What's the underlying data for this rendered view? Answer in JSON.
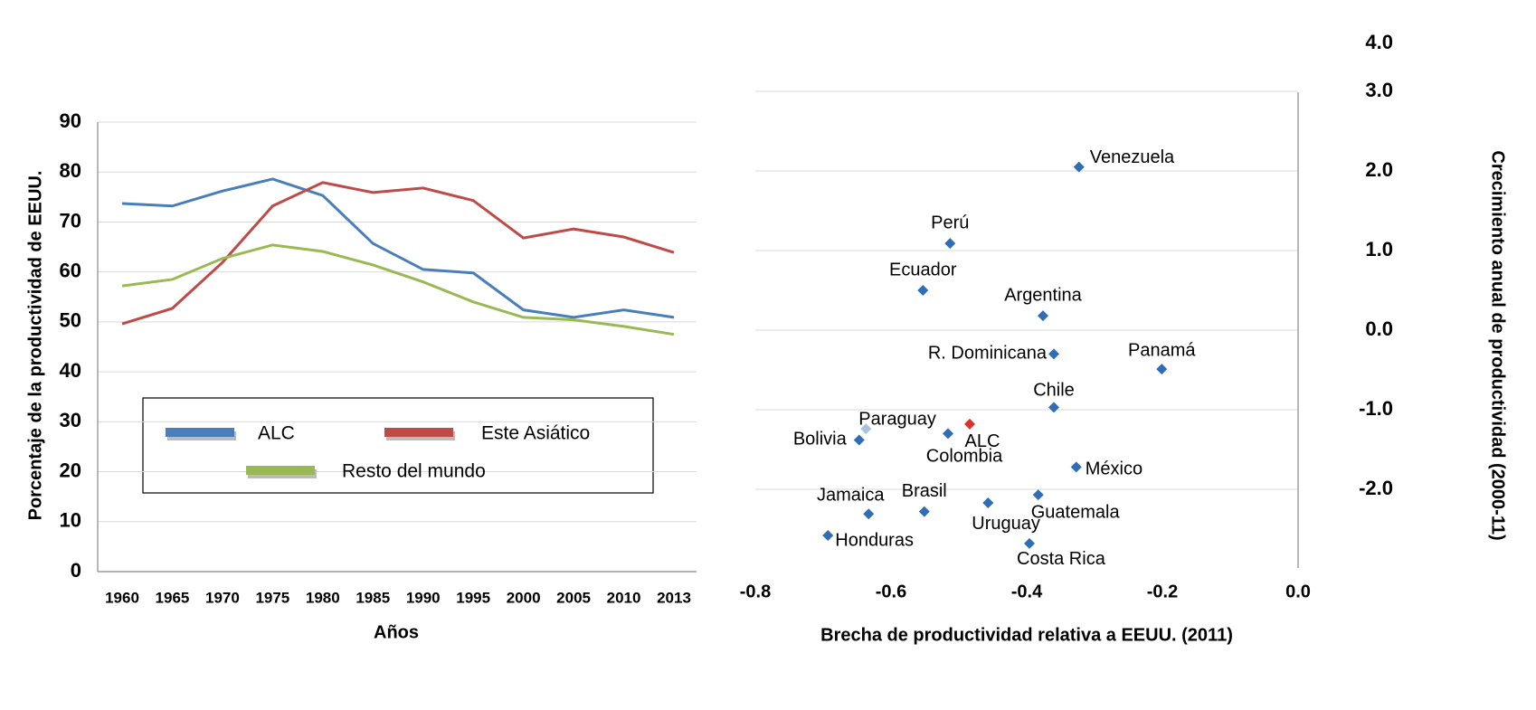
{
  "chart_data": [
    {
      "type": "line",
      "y_axis_label": "Porcentaje de la productividad de EEUU.",
      "x_axis_label": "Años",
      "categories": [
        "1960",
        "1965",
        "1970",
        "1975",
        "1980",
        "1985",
        "1990",
        "1995",
        "2000",
        "2005",
        "2010",
        "2013"
      ],
      "series": [
        {
          "name": "ALC",
          "color": "#4a7ebb",
          "values": [
            73.7,
            73.2,
            76.2,
            78.6,
            75.3,
            65.7,
            60.5,
            59.8,
            52.4,
            50.9,
            52.4,
            50.9
          ]
        },
        {
          "name": "Este Asiático",
          "color": "#be4b48",
          "values": [
            49.6,
            52.7,
            61.9,
            73.2,
            77.9,
            75.9,
            76.8,
            74.3,
            66.8,
            68.6,
            67.0,
            63.9
          ]
        },
        {
          "name": "Resto del mundo",
          "color": "#98b954",
          "values": [
            57.2,
            58.5,
            62.7,
            65.4,
            64.1,
            61.4,
            58.0,
            54.0,
            50.9,
            50.4,
            49.1,
            47.5
          ]
        }
      ],
      "ylim": [
        0,
        90
      ],
      "yticks": [
        0,
        10,
        20,
        30,
        40,
        50,
        60,
        70,
        80,
        90
      ],
      "grid": true,
      "legend": "bottom"
    },
    {
      "type": "scatter",
      "x_axis_label": "Brecha de productividad relativa a EEUU. (2011)",
      "y_axis_label": "Crecimiento anual de productividad (2000-11)",
      "labels": [
        "Venezuela",
        "Perú",
        "Ecuador",
        "Argentina",
        "R. Dominicana",
        "Panamá",
        "Chile",
        "Paraguay",
        "Bolivia",
        "Colombia",
        "ALC",
        "México",
        "Guatemala",
        "Uruguay",
        "Brasil",
        "Jamaica",
        "Honduras",
        "Costa Rica"
      ],
      "x": [
        -0.323,
        -0.513,
        -0.553,
        -0.376,
        -0.36,
        -0.201,
        -0.36,
        -0.637,
        -0.647,
        -0.516,
        -0.484,
        -0.327,
        -0.383,
        -0.457,
        -0.551,
        -0.633,
        -0.693,
        -0.396
      ],
      "values": [
        2.05,
        1.09,
        0.5,
        0.18,
        -0.3,
        -0.49,
        -0.97,
        -1.24,
        -1.38,
        -1.3,
        -1.18,
        -1.72,
        -2.07,
        -2.17,
        -2.28,
        -2.31,
        -2.58,
        -2.68
      ],
      "colors": [
        "#2f6eb5",
        "#2f6eb5",
        "#2f6eb5",
        "#2f6eb5",
        "#2f6eb5",
        "#2f6eb5",
        "#2f6eb5",
        "#a9c2e0",
        "#2f6eb5",
        "#2f6eb5",
        "#e0302a",
        "#2f6eb5",
        "#2f6eb5",
        "#2f6eb5",
        "#2f6eb5",
        "#2f6eb5",
        "#2f6eb5",
        "#2f6eb5"
      ],
      "xlim": [
        -0.8,
        0
      ],
      "xticks": [
        -0.8,
        -0.6,
        -0.4,
        -0.2,
        {
          "value": 0,
          "label": "0.0"
        }
      ],
      "ylim": [
        -3,
        4
      ],
      "yticks": [
        {
          "value": 4,
          "label": "4.0"
        },
        {
          "value": 3,
          "label": "3.0"
        },
        {
          "value": 2,
          "label": "2.0"
        },
        {
          "value": 1,
          "label": "1.0"
        },
        {
          "value": 0,
          "label": "0.0"
        },
        {
          "value": -1,
          "label": "-1.0"
        },
        {
          "value": -2,
          "label": "-2.0"
        }
      ],
      "grid": true
    }
  ]
}
